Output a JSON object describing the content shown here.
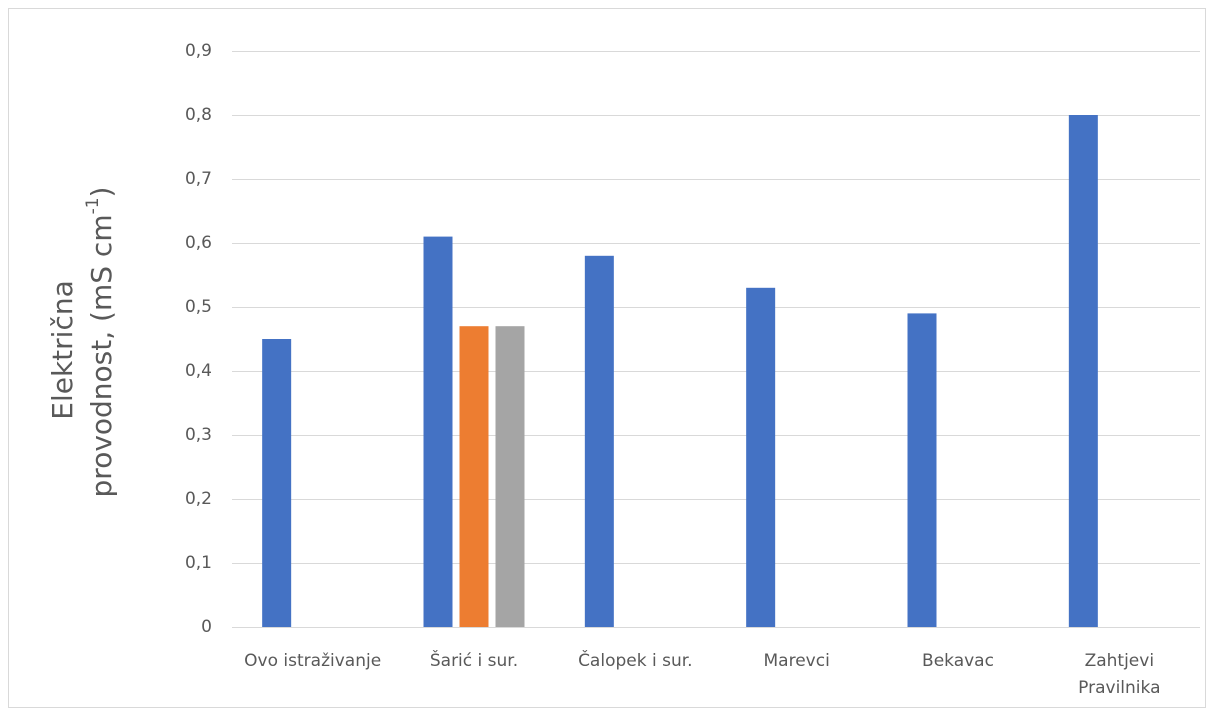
{
  "chart_data": {
    "type": "bar",
    "categories": [
      "Ovo istraživanje",
      "Šarić i sur.",
      "Čalopek i sur.",
      "Marevci",
      "Bekavac",
      "Zahtjevi Pravilnika"
    ],
    "category_lines": [
      [
        "Ovo istraživanje"
      ],
      [
        "Šarić i sur."
      ],
      [
        "Čalopek i sur."
      ],
      [
        "Marevci"
      ],
      [
        "Bekavac"
      ],
      [
        "Zahtjevi",
        "Pravilnika"
      ]
    ],
    "series": [
      {
        "color": "#4472C4",
        "values": [
          0.45,
          0.61,
          0.58,
          0.53,
          0.49,
          0.8
        ]
      },
      {
        "color": "#ED7D31",
        "values": [
          null,
          0.47,
          null,
          null,
          null,
          null
        ]
      },
      {
        "color": "#A5A5A5",
        "values": [
          null,
          0.47,
          null,
          null,
          null,
          null
        ]
      }
    ],
    "ylim": [
      0,
      0.9
    ],
    "yticks": [
      0,
      0.1,
      0.2,
      0.3,
      0.4,
      0.5,
      0.6,
      0.7,
      0.8,
      0.9
    ],
    "ytick_labels": [
      "0",
      "0,1",
      "0,2",
      "0,3",
      "0,4",
      "0,5",
      "0,6",
      "0,7",
      "0,8",
      "0,9"
    ],
    "ylabel_line1": "Električna",
    "ylabel_line2": "provodnost, (mS cm",
    "ylabel_sup": "-1",
    "ylabel_end": ")",
    "grid": true,
    "gridline_color": "#d9d9d9",
    "title": "",
    "legend": "none"
  }
}
